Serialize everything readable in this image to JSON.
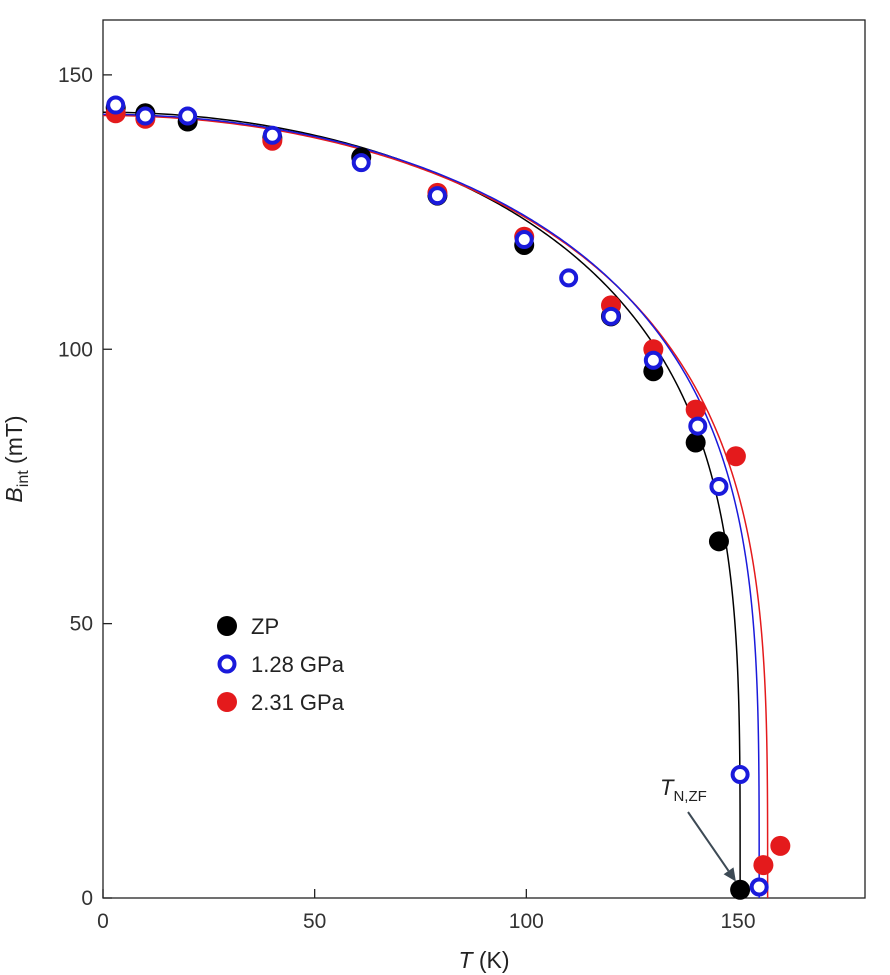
{
  "chart_data": {
    "type": "scatter",
    "title": "",
    "xlabel": {
      "symbol": "T",
      "unit": " (K)"
    },
    "ylabel": {
      "symbol": "B",
      "sub": "int",
      "unit": " (mT)"
    },
    "xlim": [
      0,
      180
    ],
    "ylim": [
      0,
      160
    ],
    "xticks": [
      0,
      50,
      100,
      150
    ],
    "yticks": [
      0,
      50,
      100,
      150
    ],
    "grid": false,
    "legend_position": "center-left",
    "series": [
      {
        "name": "ZP",
        "color": "#000000",
        "marker": "filled-circle",
        "points": [
          [
            3,
            144
          ],
          [
            10,
            143
          ],
          [
            20,
            141.5
          ],
          [
            40,
            138.5
          ],
          [
            61,
            135
          ],
          [
            79,
            128
          ],
          [
            99.5,
            119
          ],
          [
            120,
            106
          ],
          [
            130,
            96
          ],
          [
            140,
            83
          ],
          [
            145.5,
            65
          ],
          [
            150.5,
            1.5
          ]
        ],
        "fit": {
          "Tc": 150.5,
          "B0": 143.2,
          "beta": 0.255
        }
      },
      {
        "name": "1.28 GPa",
        "color": "#1a1adb",
        "marker": "open-circle",
        "points": [
          [
            3,
            144.5
          ],
          [
            10,
            142.5
          ],
          [
            20,
            142.5
          ],
          [
            40,
            139
          ],
          [
            61,
            134
          ],
          [
            79,
            128
          ],
          [
            99.5,
            120
          ],
          [
            110,
            113
          ],
          [
            120,
            106
          ],
          [
            130,
            98
          ],
          [
            140.5,
            86
          ],
          [
            145.5,
            75
          ],
          [
            150.5,
            22.5
          ],
          [
            155,
            2
          ]
        ],
        "fit": {
          "Tc": 155,
          "B0": 142.8,
          "beta": 0.26
        }
      },
      {
        "name": "2.31 GPa",
        "color": "#e41a1c",
        "marker": "filled-circle",
        "points": [
          [
            3,
            143
          ],
          [
            10,
            142
          ],
          [
            40,
            138
          ],
          [
            79,
            128.5
          ],
          [
            99.5,
            120.5
          ],
          [
            120,
            108
          ],
          [
            130,
            100
          ],
          [
            140,
            89
          ],
          [
            149.5,
            80.5
          ],
          [
            156,
            6
          ],
          [
            160,
            9.5
          ]
        ],
        "fit": {
          "Tc": 157,
          "B0": 142.6,
          "beta": 0.27
        }
      }
    ],
    "annotations": [
      {
        "symbol": "T",
        "sub": "N,ZF",
        "arrow_to": [
          149.5,
          3
        ]
      }
    ]
  }
}
